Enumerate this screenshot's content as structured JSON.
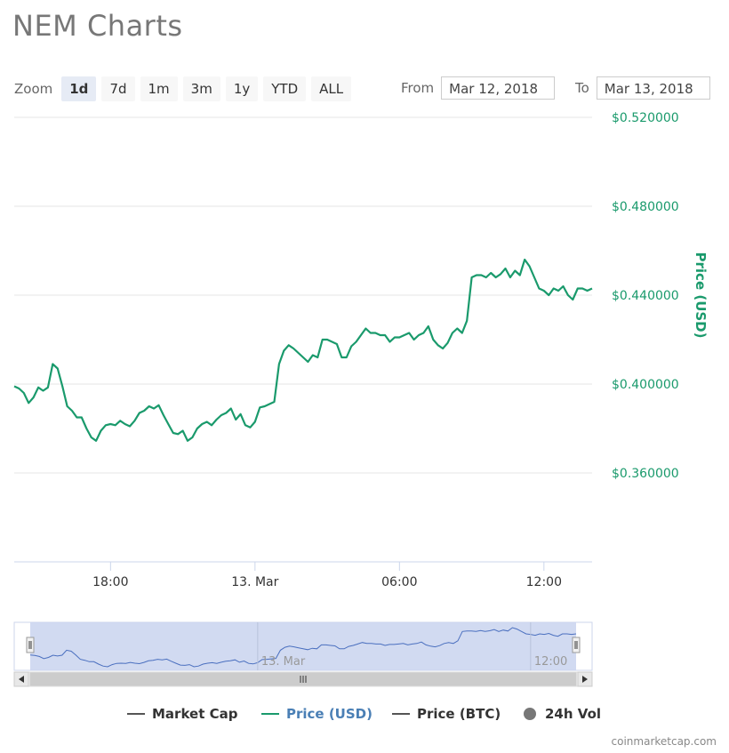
{
  "title": "NEM Charts",
  "toolbar": {
    "zoom_label": "Zoom",
    "zoom_buttons": [
      "1d",
      "7d",
      "1m",
      "3m",
      "1y",
      "YTD",
      "ALL"
    ],
    "active_zoom": "1d",
    "from_label": "From",
    "from_value": "Mar 12, 2018",
    "to_label": "To",
    "to_value": "Mar 13, 2018"
  },
  "colors": {
    "price": "#1a9a6c",
    "navigator_fill": "#c9d4ee",
    "navigator_line": "#4a6fbf",
    "grid": "#e6e6e6"
  },
  "chart_data": {
    "type": "line",
    "ylabel": "Price (USD)",
    "y_ticks": [
      "$0.360000",
      "$0.400000",
      "$0.440000",
      "$0.480000",
      "$0.520000"
    ],
    "y_tick_values": [
      0.36,
      0.4,
      0.44,
      0.48,
      0.52
    ],
    "ylim": [
      0.32,
      0.52
    ],
    "x_tick_labels": [
      "18:00",
      "13. Mar",
      "06:00",
      "12:00"
    ],
    "x_tick_hours": [
      18,
      24,
      30,
      36
    ],
    "xlim_hours": [
      14.0,
      38.0
    ],
    "x_unit": "hours since Mar 12, 2018 00:00",
    "series": [
      {
        "name": "Price (USD)",
        "x_hours": [
          14.0,
          14.2,
          14.4,
          14.6,
          14.8,
          15.0,
          15.2,
          15.4,
          15.6,
          15.8,
          16.0,
          16.2,
          16.4,
          16.6,
          16.8,
          17.0,
          17.2,
          17.4,
          17.6,
          17.8,
          18.0,
          18.2,
          18.4,
          18.6,
          18.8,
          19.0,
          19.2,
          19.4,
          19.6,
          19.8,
          20.0,
          20.2,
          20.4,
          20.6,
          20.8,
          21.0,
          21.2,
          21.4,
          21.6,
          21.8,
          22.0,
          22.2,
          22.4,
          22.6,
          22.8,
          23.0,
          23.2,
          23.4,
          23.6,
          23.8,
          24.0,
          24.2,
          24.4,
          24.6,
          24.8,
          25.0,
          25.2,
          25.4,
          25.6,
          25.8,
          26.0,
          26.2,
          26.4,
          26.6,
          26.8,
          27.0,
          27.2,
          27.4,
          27.6,
          27.8,
          28.0,
          28.2,
          28.4,
          28.6,
          28.8,
          29.0,
          29.2,
          29.4,
          29.6,
          29.8,
          30.0,
          30.2,
          30.4,
          30.6,
          30.8,
          31.0,
          31.2,
          31.4,
          31.6,
          31.8,
          32.0,
          32.2,
          32.4,
          32.6,
          32.8,
          33.0,
          33.2,
          33.4,
          33.6,
          33.8,
          34.0,
          34.2,
          34.4,
          34.6,
          34.8,
          35.0,
          35.2,
          35.4,
          35.6,
          35.8,
          36.0,
          36.2,
          36.4,
          36.6,
          36.8,
          37.0,
          37.2,
          37.4,
          37.6,
          37.8,
          38.0
        ],
        "values": [
          0.399,
          0.398,
          0.396,
          0.3915,
          0.394,
          0.3985,
          0.397,
          0.3985,
          0.409,
          0.407,
          0.399,
          0.39,
          0.388,
          0.385,
          0.385,
          0.38,
          0.376,
          0.3745,
          0.379,
          0.3815,
          0.382,
          0.3815,
          0.3835,
          0.382,
          0.381,
          0.3835,
          0.387,
          0.388,
          0.39,
          0.389,
          0.3905,
          0.386,
          0.382,
          0.378,
          0.3775,
          0.379,
          0.3745,
          0.376,
          0.38,
          0.382,
          0.383,
          0.3815,
          0.384,
          0.386,
          0.387,
          0.389,
          0.384,
          0.3865,
          0.3815,
          0.3805,
          0.383,
          0.3895,
          0.39,
          0.391,
          0.392,
          0.409,
          0.415,
          0.4175,
          0.416,
          0.414,
          0.412,
          0.41,
          0.413,
          0.412,
          0.42,
          0.42,
          0.419,
          0.418,
          0.412,
          0.412,
          0.417,
          0.419,
          0.422,
          0.425,
          0.423,
          0.423,
          0.422,
          0.422,
          0.419,
          0.421,
          0.421,
          0.422,
          0.423,
          0.42,
          0.422,
          0.423,
          0.426,
          0.42,
          0.4175,
          0.416,
          0.4185,
          0.423,
          0.425,
          0.423,
          0.4285,
          0.448,
          0.449,
          0.449,
          0.448,
          0.45,
          0.448,
          0.4495,
          0.452,
          0.448,
          0.451,
          0.449,
          0.456,
          0.453,
          0.448,
          0.443,
          0.442,
          0.44,
          0.443,
          0.442,
          0.444,
          0.44,
          0.438,
          0.443,
          0.443,
          0.442,
          0.443
        ]
      }
    ],
    "navigator_labels": [
      "13. Mar",
      "12:00"
    ],
    "legend": [
      {
        "name": "Market Cap",
        "style": "line",
        "color": "#555555",
        "active": false
      },
      {
        "name": "Price (USD)",
        "style": "line",
        "color": "#1a9a6c",
        "active": true
      },
      {
        "name": "Price (BTC)",
        "style": "line",
        "color": "#555555",
        "active": false
      },
      {
        "name": "24h Vol",
        "style": "dot",
        "color": "#777777",
        "active": false
      }
    ]
  },
  "footer": {
    "credit": "coinmarketcap.com"
  }
}
